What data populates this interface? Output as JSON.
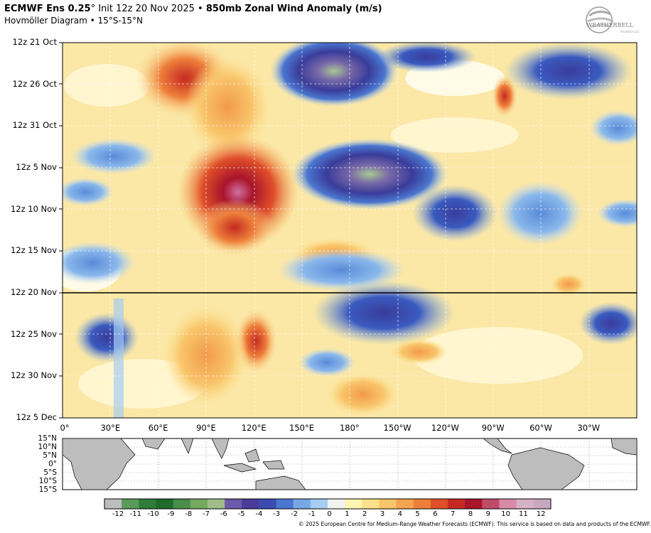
{
  "header": {
    "model": "ECMWF Ens 0.25",
    "degree_symbol": "°",
    "init": "Init 12z 20 Nov 2025",
    "bullet": "•",
    "field": "850mb Zonal Wind Anomaly (m/s)",
    "subtitle": "Hovmöller Diagram • 15°S-15°N"
  },
  "logo": {
    "text": "WEATHERBELL",
    "subtext": "Analytics LLC"
  },
  "y_axis": {
    "labels": [
      "12z 21 Oct",
      "12z 26 Oct",
      "12z 31 Oct",
      "12z 5 Nov",
      "12z 10 Nov",
      "12z 15 Nov",
      "12z 20 Nov",
      "12z 25 Nov",
      "12z 30 Nov",
      "12z 5 Dec"
    ],
    "forecast_start": "12z 20 Nov"
  },
  "x_axis": {
    "labels": [
      "0°",
      "30°E",
      "60°E",
      "90°E",
      "120°E",
      "150°E",
      "180°",
      "150°W",
      "120°W",
      "90°W",
      "60°W",
      "30°W"
    ]
  },
  "map": {
    "lat_labels": [
      "15°N",
      "10°N",
      "5°N",
      "0°",
      "5°S",
      "10°S",
      "15°S"
    ]
  },
  "colorbar": {
    "labels": [
      "-12",
      "-11",
      "-10",
      "-9",
      "-8",
      "-7",
      "-6",
      "-5",
      "-4",
      "-3",
      "-2",
      "-1",
      "0",
      "1",
      "2",
      "3",
      "4",
      "5",
      "6",
      "7",
      "8",
      "9",
      "10",
      "11",
      "12"
    ],
    "colors": [
      "#bdbdbd",
      "#5a9a5a",
      "#2e7d3a",
      "#1f6b2e",
      "#4a8c4a",
      "#76a860",
      "#a0bd8a",
      "#6a5aa8",
      "#4a3c9a",
      "#3a4cb0",
      "#4a76cf",
      "#78a8e4",
      "#a6cdf2",
      "#f2f2f2",
      "#fff5b0",
      "#fde08a",
      "#f9c56b",
      "#f5a54f",
      "#ee7f3a",
      "#e04f2a",
      "#c42a22",
      "#a8142a",
      "#c04a6a",
      "#d88aa8",
      "#d6b0c4",
      "#c8a8c0"
    ]
  },
  "copyright": "© 2025 European Centre for Medium-Range Weather Forecasts (ECMWF). This service is based on data and products of the ECMWF."
}
